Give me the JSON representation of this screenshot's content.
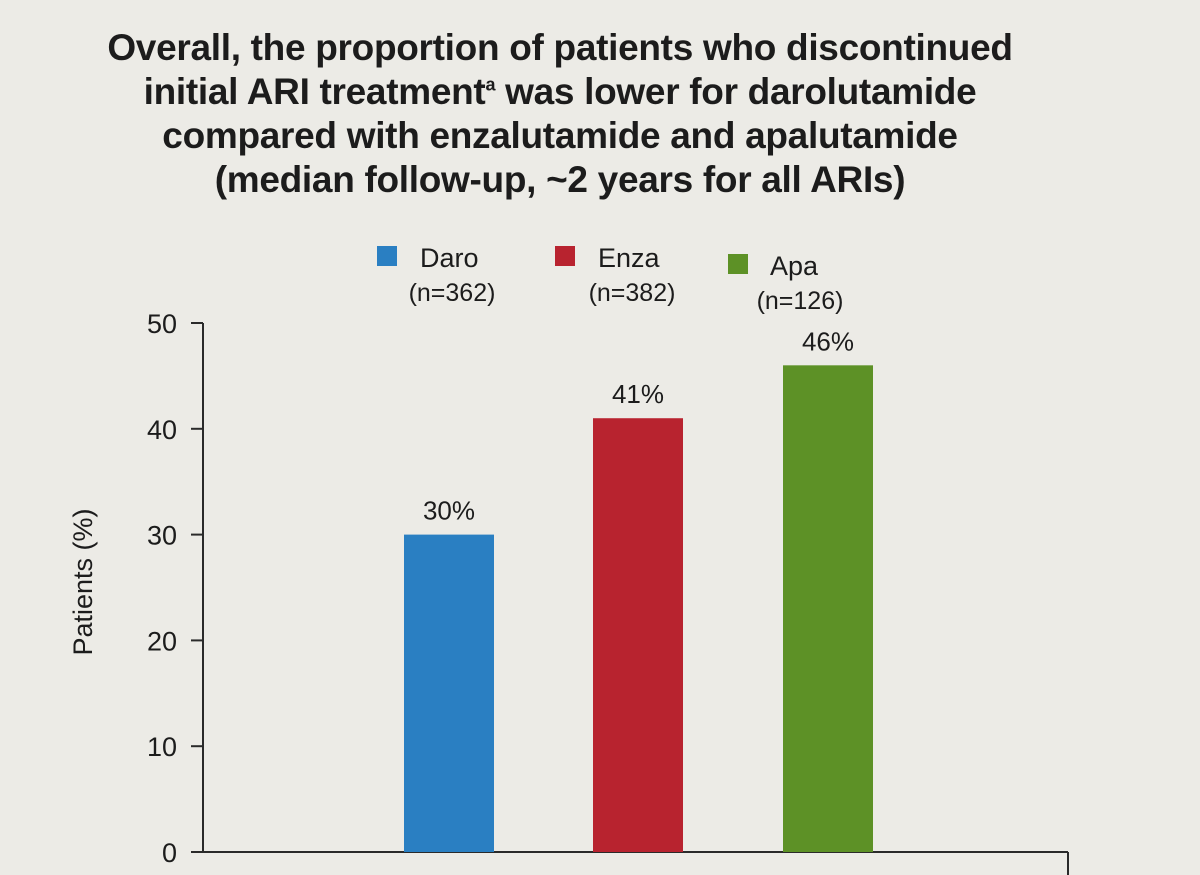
{
  "title": {
    "line1": "Overall, the proportion of patients who discontinued",
    "line2_pre": "initial ARI treatment",
    "line2_sup": "a",
    "line2_post": " was lower for darolutamide",
    "line3": "compared with enzalutamide and apalutamide",
    "line4": "(median follow-up, ~2 years for all ARIs)"
  },
  "colors": {
    "background": "#ecebe6",
    "daro": "#2a7fc2",
    "enza": "#b8232f",
    "apa": "#5d9126"
  },
  "chart_data": {
    "type": "bar",
    "ylabel": "Patients (%)",
    "ylim": [
      0,
      50
    ],
    "yticks": [
      0,
      10,
      20,
      30,
      40,
      50
    ],
    "grid": false,
    "legend_position": "top",
    "series": [
      {
        "name": "Daro",
        "sublabel": "(n=362)",
        "value": 30,
        "data_label": "30%",
        "color": "#2a7fc2"
      },
      {
        "name": "Enza",
        "sublabel": "(n=382)",
        "value": 41,
        "data_label": "41%",
        "color": "#b8232f"
      },
      {
        "name": "Apa",
        "sublabel": "(n=126)",
        "value": 46,
        "data_label": "46%",
        "color": "#5d9126"
      }
    ]
  }
}
